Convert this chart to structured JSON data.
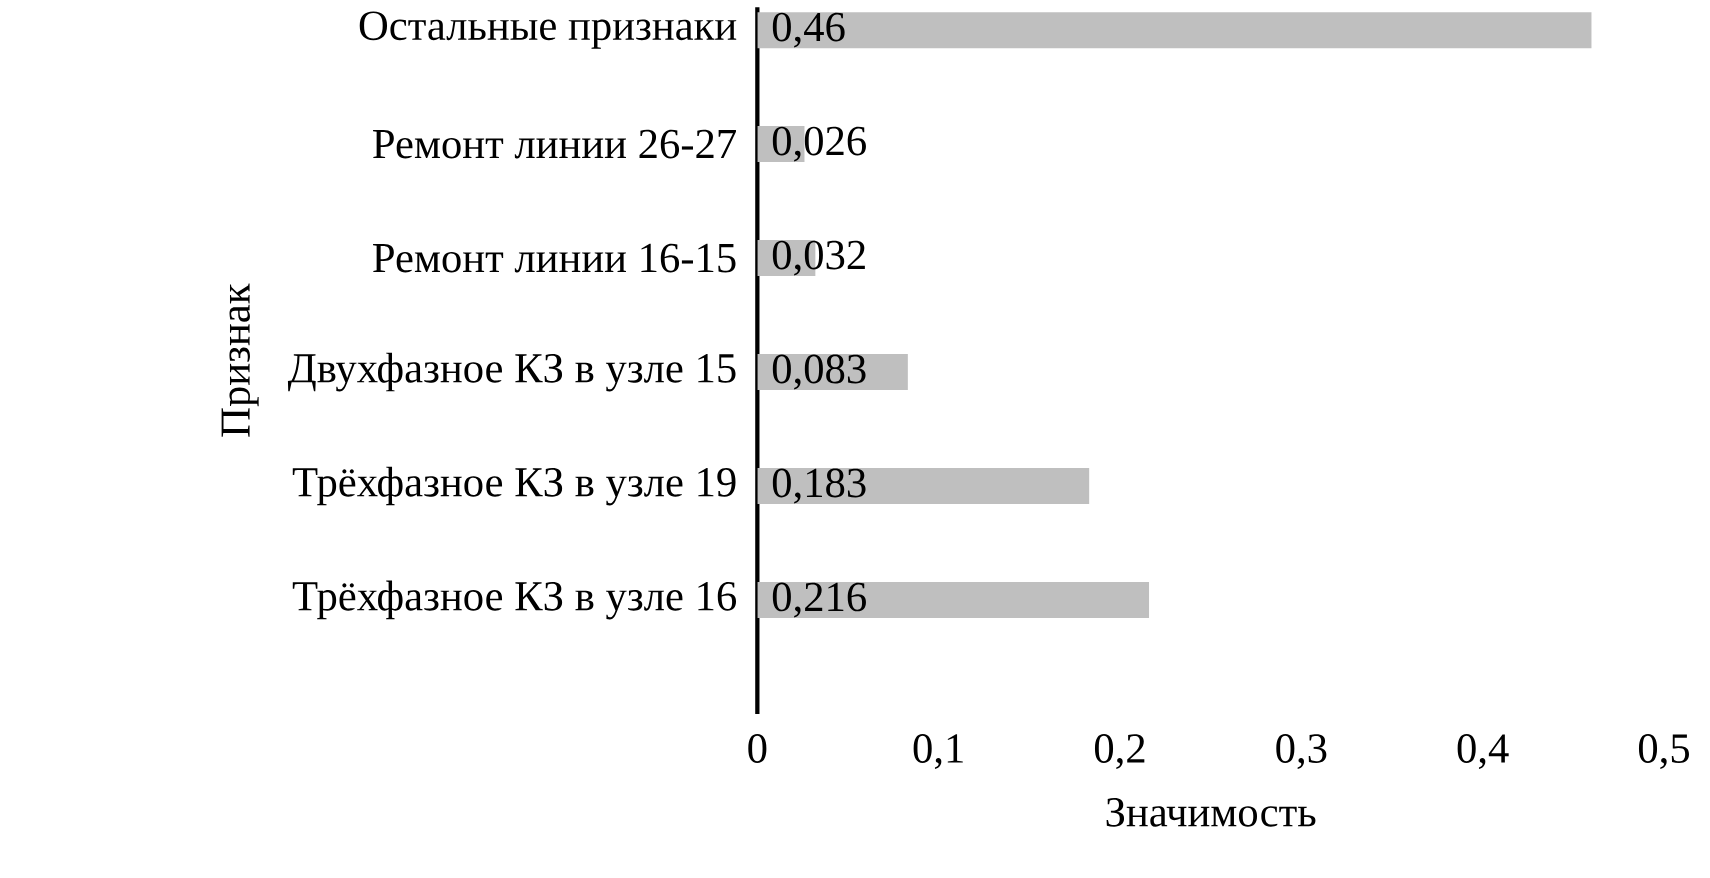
{
  "chart_data": {
    "type": "bar",
    "orientation": "horizontal",
    "xlabel": "Значимость",
    "ylabel": "Признак",
    "categories": [
      "Остальные признаки",
      "Ремонт линии 26-27",
      "Ремонт линии 16-15",
      "Двухфазное КЗ в узле 15",
      "Трёхфазное КЗ в узле 19",
      "Трёхфазное КЗ в узле 16"
    ],
    "values": [
      0.46,
      0.026,
      0.032,
      0.083,
      0.183,
      0.216
    ],
    "value_labels": [
      "0,46",
      "0,026",
      "0,032",
      "0,083",
      "0,183",
      "0,216"
    ],
    "color": "#bfbfbf",
    "xlim": [
      0,
      0.5
    ],
    "xticks": [
      {
        "value": 0,
        "label": "0"
      },
      {
        "value": 0.1,
        "label": "0,1"
      },
      {
        "value": 0.2,
        "label": "0,2"
      },
      {
        "value": 0.3,
        "label": "0,3"
      },
      {
        "value": 0.4,
        "label": "0,4"
      },
      {
        "value": 0.5,
        "label": "0,5"
      }
    ],
    "grid": false
  }
}
